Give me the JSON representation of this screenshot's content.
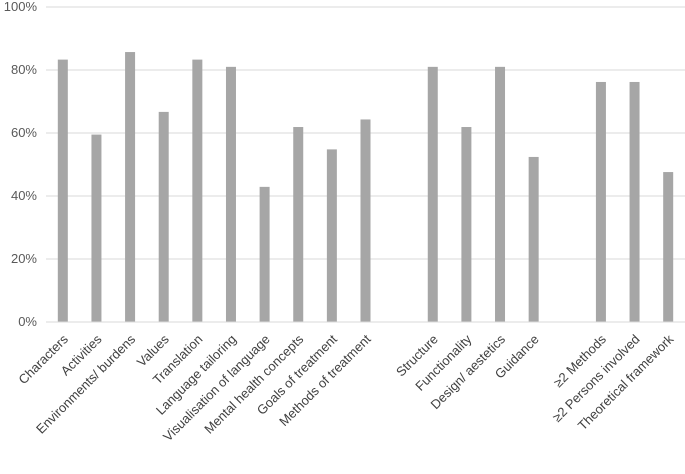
{
  "chart_data": {
    "type": "bar",
    "title": "",
    "xlabel": "",
    "ylabel": "",
    "ylim": [
      0,
      100
    ],
    "yticks": [
      {
        "value": 0,
        "label": "0%"
      },
      {
        "value": 20,
        "label": "20%"
      },
      {
        "value": 40,
        "label": "40%"
      },
      {
        "value": 60,
        "label": "60%"
      },
      {
        "value": 80,
        "label": "80%"
      },
      {
        "value": 100,
        "label": "100%"
      }
    ],
    "grid": true,
    "legend": "none",
    "bar_color": "#a6a6a6",
    "grid_color": "#d9d9d9",
    "categories": [
      "Characters",
      "Activities",
      "Environments/ burdens",
      "Values",
      "Translation",
      "Language tailoring",
      "Visualisation of language",
      "Mental health concepts",
      "Goals of treatment",
      "Methods of treatment",
      "",
      "Structure",
      "Functionality",
      "Design/ aestetics",
      "Guidance",
      "",
      "≥2 Methods",
      "≥2 Persons involved",
      "Theoretical framework"
    ],
    "values": [
      83.3,
      59.5,
      85.7,
      66.7,
      83.3,
      81,
      42.9,
      61.9,
      54.8,
      64.3,
      null,
      81,
      61.9,
      81,
      52.4,
      null,
      76.2,
      76.2,
      47.6
    ]
  }
}
